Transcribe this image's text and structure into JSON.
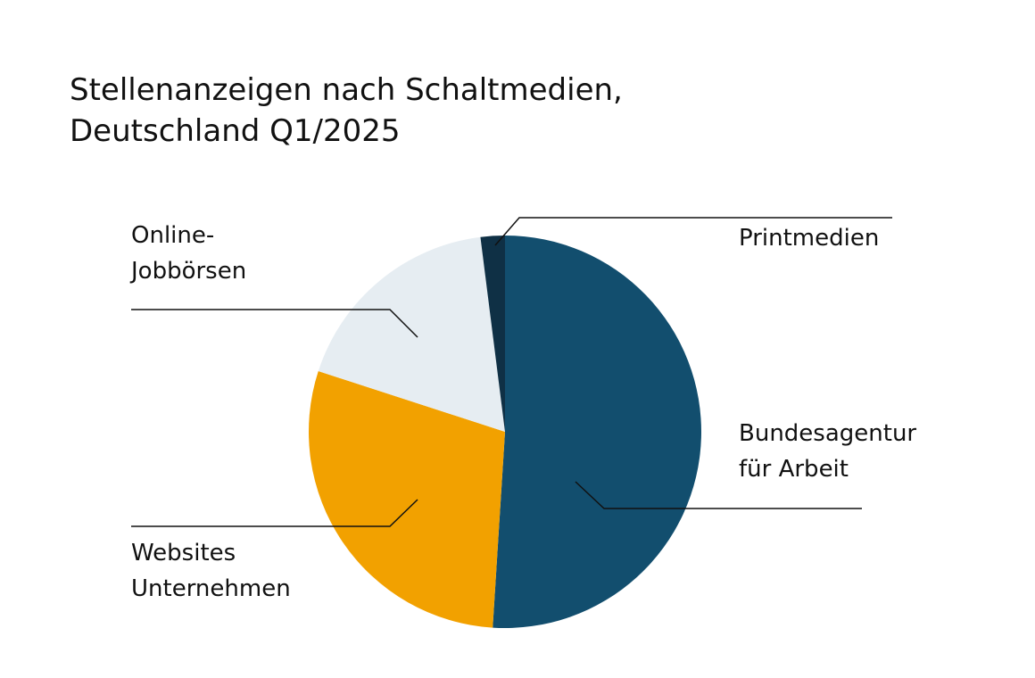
{
  "chart_data": {
    "type": "pie",
    "title": "Stellenanzeigen nach Schaltmedien,\nDeutschland Q1/2025",
    "categories": [
      "Bundesagentur\nfür Arbeit",
      "Websites\nUnternehmen",
      "Online-\nJobbörsen",
      "Printmedien"
    ],
    "values": [
      51,
      29,
      18,
      2
    ],
    "colors": [
      "#124e6e",
      "#f2a100",
      "#e6edf2",
      "#0f3045"
    ]
  }
}
